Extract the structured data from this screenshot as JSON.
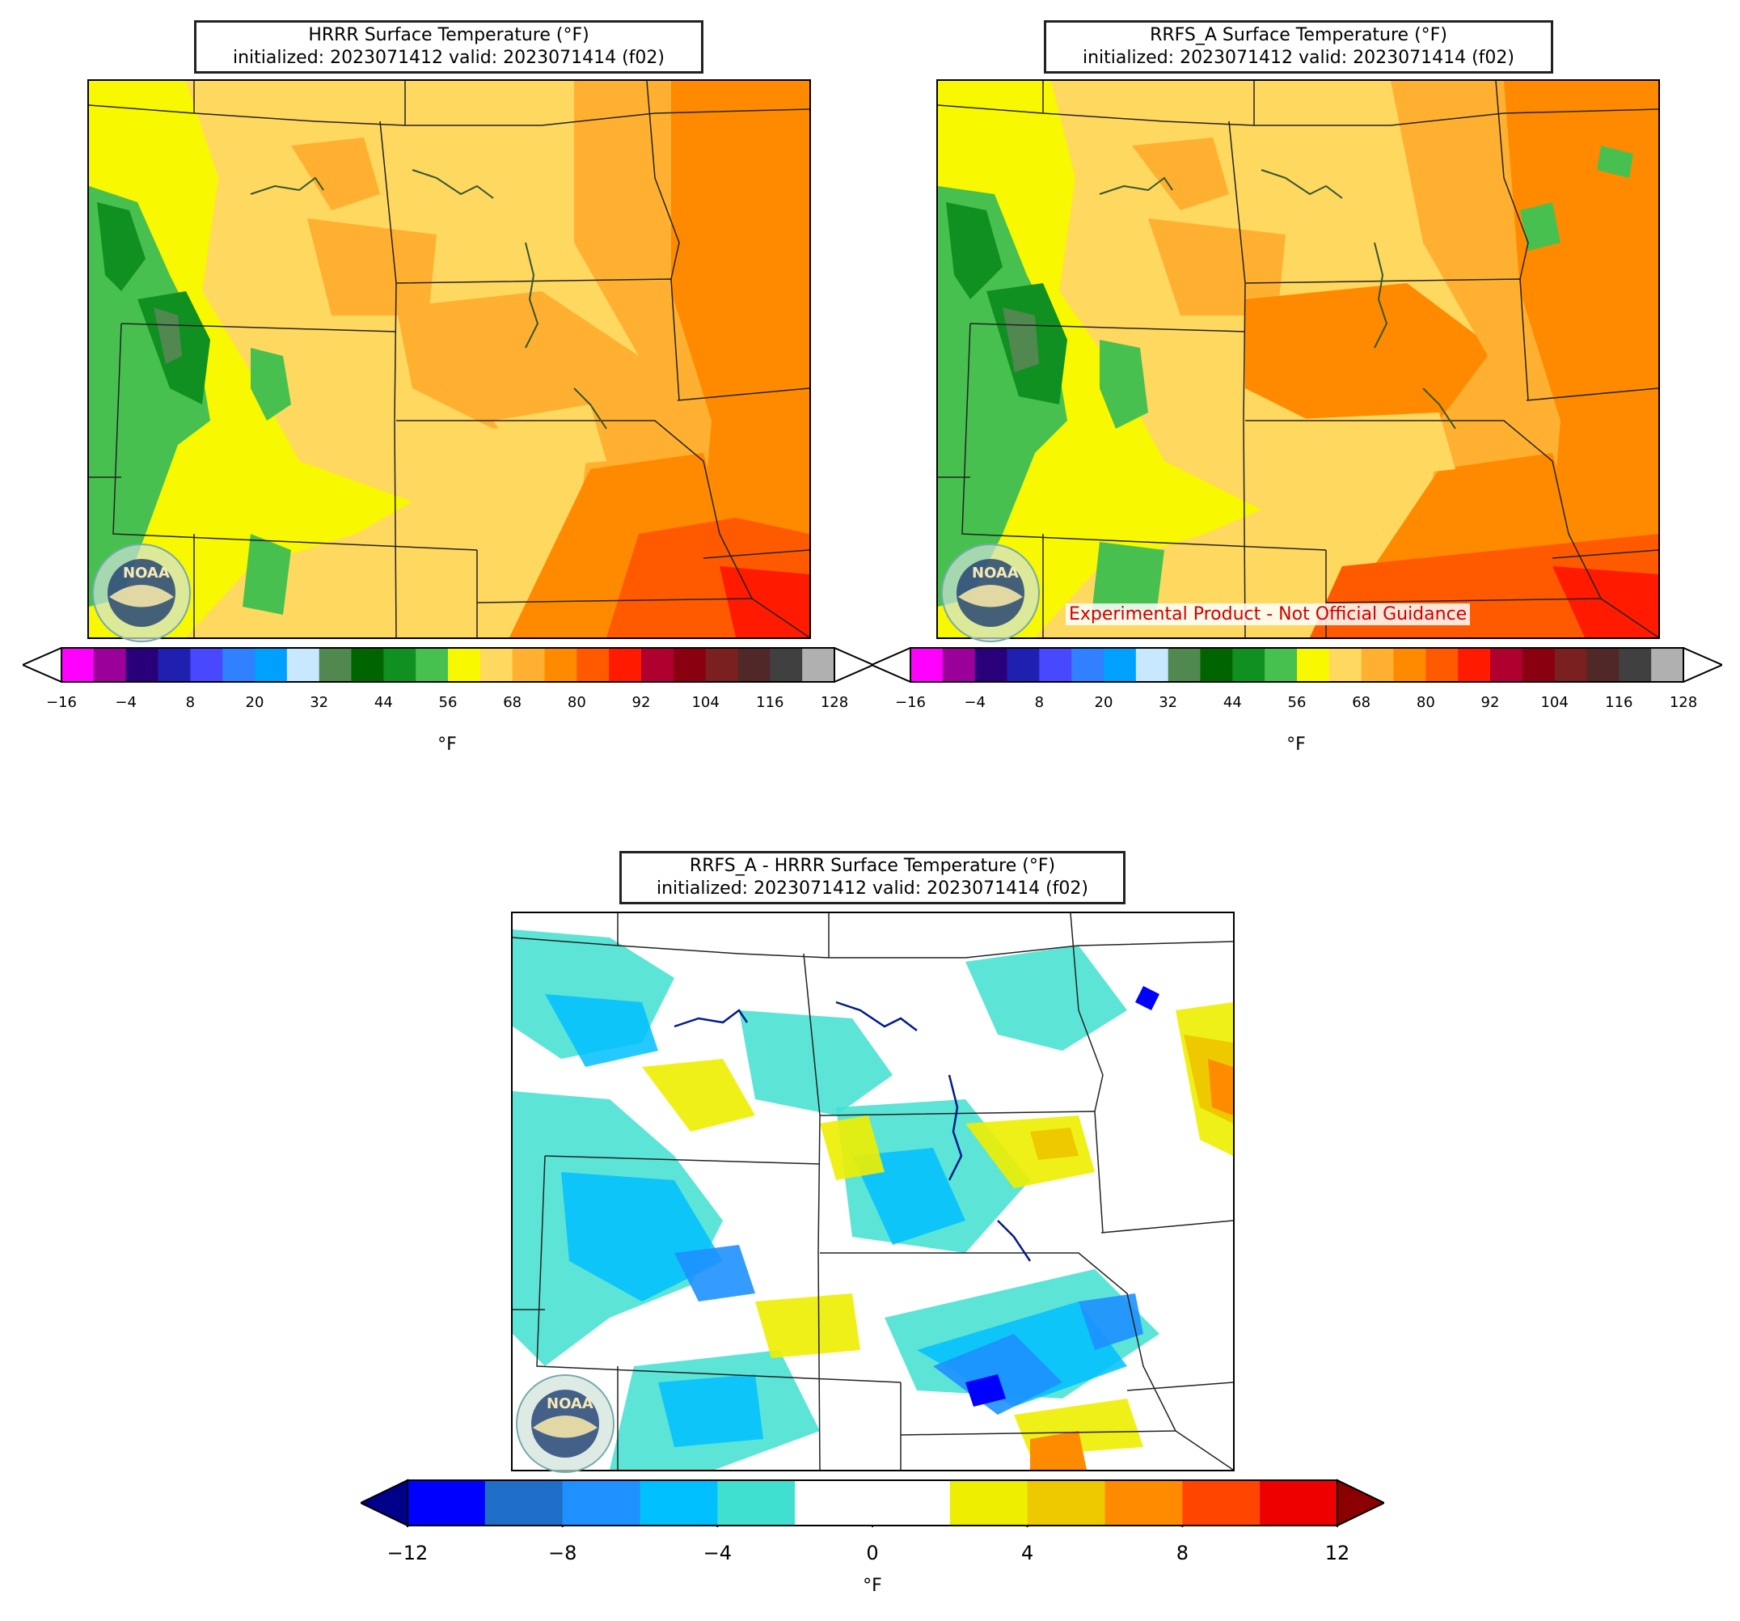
{
  "panels": [
    {
      "title_line1": "HRRR Surface Temperature (°F)",
      "title_line2": "initialized: 2023071412 valid: 2023071414 (f02)"
    },
    {
      "title_line1": "RRFS_A Surface Temperature (°F)",
      "title_line2": "initialized: 2023071412 valid: 2023071414 (f02)",
      "overlay_text": "Experimental Product - Not Official Guidance"
    },
    {
      "title_line1": "RRFS_A - HRRR Surface Temperature (°F)",
      "title_line2": "initialized: 2023071412 valid: 2023071414 (f02)"
    }
  ],
  "temperature_colorbar": {
    "unit": "°F",
    "ticks": [
      "−16",
      "−4",
      "8",
      "20",
      "32",
      "44",
      "56",
      "68",
      "80",
      "92",
      "104",
      "116",
      "128"
    ],
    "colors": [
      "#ff00ff",
      "#9b009b",
      "#2a007a",
      "#2020b0",
      "#4848ff",
      "#3080ff",
      "#00a0ff",
      "#c8e8ff",
      "#508850",
      "#006400",
      "#109020",
      "#48c050",
      "#f8f800",
      "#ffd860",
      "#ffb030",
      "#ff8a00",
      "#ff5a00",
      "#ff1a00",
      "#b00030",
      "#8a0010",
      "#7a2020",
      "#502828",
      "#404040",
      "#b0b0b0"
    ],
    "under_color": "#ffffff",
    "over_color": "#ffffff"
  },
  "difference_colorbar": {
    "unit": "°F",
    "ticks": [
      "−12",
      "−8",
      "−4",
      "0",
      "4",
      "8",
      "12"
    ],
    "colors": [
      "#0000ff",
      "#1e6ec8",
      "#1e90ff",
      "#00bfff",
      "#40e0d0",
      "#ffffff",
      "#ffffff",
      "#eeee00",
      "#eec900",
      "#ff8c00",
      "#ff4500",
      "#ee0000"
    ],
    "under_color": "#00008b",
    "over_color": "#8b0000"
  },
  "logo": {
    "name": "NOAA",
    "text": "NOAA"
  }
}
